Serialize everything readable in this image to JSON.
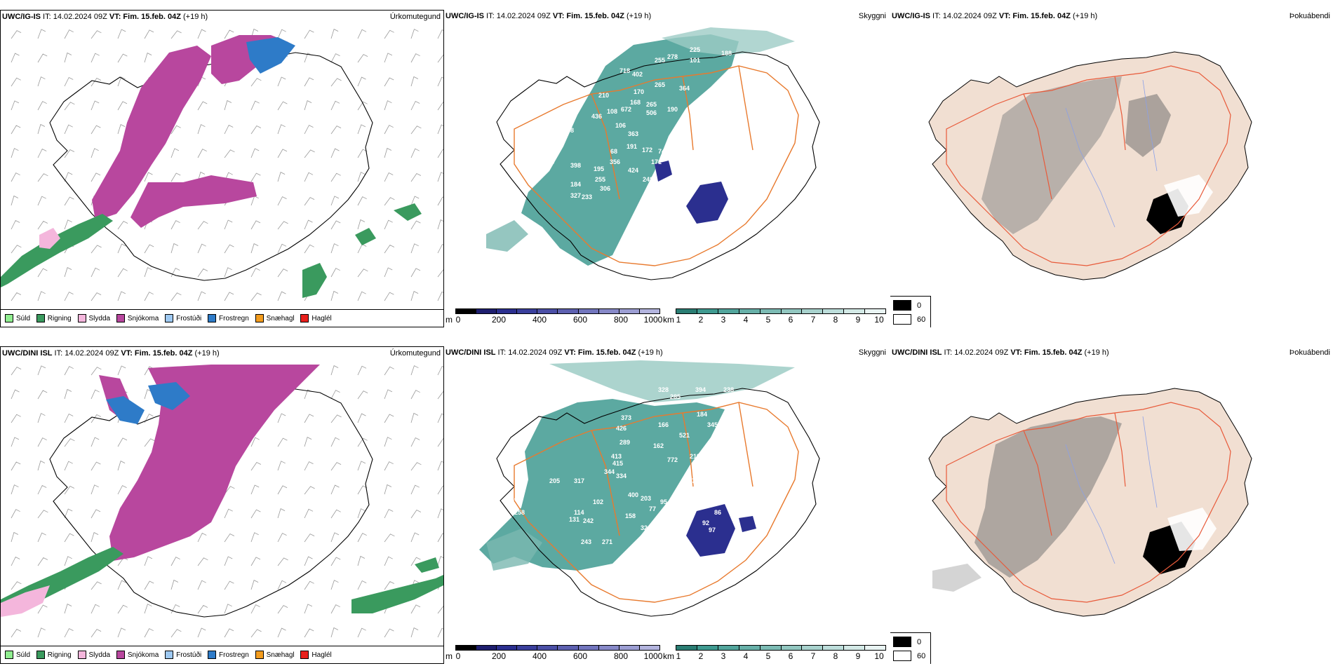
{
  "rows": [
    {
      "precip": {
        "hdr_model": "UWC/IG-IS",
        "hdr_rest": " IT: 14.02.2024 09Z ",
        "hdr_vt_label": "VT:",
        "hdr_vt": " Fim. 15.feb. 04Z",
        "hdr_lead": " (+19 h)",
        "type_label": "Úrkomutegund"
      },
      "cloud": {
        "hdr_model": "UWC/IG-IS",
        "hdr_rest": " IT: 14.02.2024 09Z ",
        "hdr_vt_label": "VT:",
        "hdr_vt": " Fim. 15.feb. 04Z",
        "hdr_lead": " (+19 h)",
        "type_label": "Skyggni"
      },
      "fog": {
        "hdr_model": "UWC/IG-IS",
        "hdr_rest": " IT: 14.02.2024 09Z ",
        "hdr_vt_label": "VT:",
        "hdr_vt": " Fim. 15.feb. 04Z",
        "hdr_lead": " (+19 h)",
        "type_label": "Þokuábendi"
      },
      "cloud_labels": [
        "225",
        "278",
        "101",
        "188",
        "718",
        "402",
        "255",
        "265",
        "170",
        "168",
        "364",
        "210",
        "265",
        "190",
        "108",
        "672",
        "506",
        "33",
        "436",
        "148",
        "363",
        "106",
        "191",
        "172",
        "74",
        "102",
        "119",
        "398",
        "68",
        "356",
        "424",
        "171",
        "195",
        "104",
        "255",
        "248",
        "184",
        "306",
        "327",
        "233",
        "109"
      ]
    },
    {
      "precip": {
        "hdr_model": "UWC/DINI ISL",
        "hdr_rest": " IT: 14.02.2024 09Z ",
        "hdr_vt_label": "VT:",
        "hdr_vt": " Fim. 15.feb. 04Z",
        "hdr_lead": " (+19 h)",
        "type_label": "Úrkomutegund"
      },
      "cloud": {
        "hdr_model": "UWC/DINI ISL",
        "hdr_rest": " IT: 14.02.2024 09Z ",
        "hdr_vt_label": "VT:",
        "hdr_vt": " Fim. 15.feb. 04Z",
        "hdr_lead": " (+19 h)",
        "type_label": "Skyggni"
      },
      "fog": {
        "hdr_model": "UWC/DINI ISL",
        "hdr_rest": " IT: 14.02.2024 09Z ",
        "hdr_vt_label": "VT:",
        "hdr_vt": " Fim. 15.feb. 04Z",
        "hdr_lead": " (+19 h)",
        "type_label": "Þokuábendi"
      },
      "cloud_labels": [
        "191",
        "396",
        "158",
        "328",
        "285",
        "394",
        "238",
        "241",
        "373",
        "426",
        "166",
        "184",
        "521",
        "345",
        "289",
        "162",
        "413",
        "415",
        "772",
        "219",
        "344",
        "334",
        "375",
        "205",
        "317",
        "400",
        "203",
        "95",
        "914",
        "258",
        "102",
        "77",
        "75",
        "86",
        "92",
        "97",
        "131",
        "114",
        "242",
        "158",
        "326",
        "243",
        "271",
        "107",
        "111",
        "123"
      ]
    }
  ],
  "precip_legend": [
    {
      "label": "Súld",
      "color": "#90ee90"
    },
    {
      "label": "Rigning",
      "color": "#3a9a5e"
    },
    {
      "label": "Slydda",
      "color": "#f4b6dc"
    },
    {
      "label": "Snjókoma",
      "color": "#b8479e"
    },
    {
      "label": "Frostúði",
      "color": "#9ec9f2"
    },
    {
      "label": "Frostregn",
      "color": "#2e7bc8"
    },
    {
      "label": "Snæhagl",
      "color": "#f39c1e"
    },
    {
      "label": "Haglél",
      "color": "#e8201c"
    }
  ],
  "cbar_base": {
    "unit": "m",
    "ticks": [
      "0",
      "200",
      "400",
      "600",
      "800",
      "1000"
    ]
  },
  "cbar_visib": {
    "unit": "km",
    "ticks": [
      "1",
      "2",
      "3",
      "4",
      "5",
      "6",
      "7",
      "8",
      "9",
      "10"
    ]
  },
  "fog_legend": [
    "0",
    "60"
  ],
  "colors": {
    "snow": "#b8479e",
    "rain": "#3a9a5e",
    "frz_rain": "#2e7bc8",
    "sleet": "#f4b6dc",
    "teal": "#3f9a90",
    "navy": "#2b2f8f",
    "road": "#e87a2e",
    "fog_land": "#f1dfd2",
    "fog_road": "#e85a3a"
  }
}
